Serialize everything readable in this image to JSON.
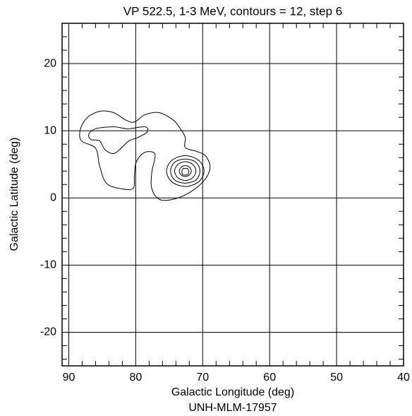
{
  "chart_data": {
    "type": "contour",
    "title": "VP 522.5, 1-3 MeV, contours = 12, step 6",
    "xlabel": "Galactic Longitude (deg)",
    "ylabel": "Galactic Latitude (deg)",
    "footnote": "UNH-MLM-17957",
    "xlim": [
      91,
      40
    ],
    "ylim": [
      -25,
      26
    ],
    "xticks": [
      90,
      80,
      70,
      60,
      50,
      40
    ],
    "yticks": [
      -20,
      -10,
      0,
      10,
      20
    ],
    "xminorticks": [
      88,
      86,
      84,
      82,
      78,
      76,
      74,
      72,
      68,
      66,
      64,
      62,
      58,
      56,
      54,
      52,
      48,
      46,
      44,
      42
    ],
    "yminorticks": [
      -24,
      -22,
      -18,
      -16,
      -14,
      -12,
      -8,
      -6,
      -4,
      -2,
      2,
      4,
      6,
      8,
      12,
      14,
      16,
      18,
      22,
      24
    ],
    "grid": true,
    "color": "#000000",
    "contours": [
      {
        "x": [
          88.3,
          88.1,
          86.0,
          85.4,
          84.4,
          82.3,
          80.4,
          80.2,
          80.0,
          79.2,
          78.1,
          77.1,
          77.6,
          77.6,
          76.5,
          74.4,
          71.8,
          69.7,
          68.9,
          69.5,
          70.8,
          72.6,
          72.6,
          73.4,
          74.4,
          76.5,
          78.6,
          80.2,
          81.5,
          83.3,
          85.4,
          87.3
        ],
        "y": [
          10.1,
          8.5,
          7.4,
          4.8,
          2.2,
          1.4,
          1.4,
          3.3,
          5.1,
          6.4,
          6.9,
          6.4,
          3.8,
          1.4,
          -0.2,
          -0.2,
          0.9,
          2.7,
          4.5,
          6.2,
          6.9,
          7.5,
          9.0,
          10.4,
          11.6,
          12.7,
          12.4,
          11.3,
          11.6,
          12.7,
          12.9,
          11.9
        ]
      },
      {
        "x": [
          87.0,
          86.0,
          83.3,
          81.2,
          78.6,
          78.3,
          79.7,
          81.0,
          82.1,
          83.3,
          84.6,
          85.4,
          86.7
        ],
        "y": [
          9.5,
          10.3,
          10.6,
          10.3,
          10.6,
          9.8,
          9.0,
          8.5,
          7.5,
          6.6,
          7.2,
          8.5,
          8.7
        ]
      },
      {
        "x": [
          69.8,
          70.6,
          72.6,
          74.6,
          75.4,
          74.6,
          72.6,
          70.6
        ],
        "y": [
          4.0,
          5.6,
          6.3,
          5.6,
          4.0,
          2.4,
          1.7,
          2.4
        ]
      },
      {
        "x": [
          70.4,
          71.0,
          72.6,
          74.2,
          74.8,
          74.2,
          72.6,
          71.0
        ],
        "y": [
          4.0,
          5.3,
          5.8,
          5.3,
          4.0,
          2.7,
          2.2,
          2.7
        ]
      },
      {
        "x": [
          71.0,
          71.5,
          72.6,
          73.7,
          74.2,
          73.7,
          72.6,
          71.5
        ],
        "y": [
          4.0,
          5.0,
          5.4,
          5.0,
          4.0,
          3.0,
          2.6,
          3.0
        ]
      },
      {
        "x": [
          71.7,
          72.0,
          72.6,
          73.2,
          73.5,
          73.2,
          72.6,
          72.0
        ],
        "y": [
          4.0,
          4.6,
          4.8,
          4.6,
          4.0,
          3.4,
          3.2,
          3.4
        ]
      },
      {
        "x": [
          72.1,
          72.2,
          72.6,
          73.0,
          73.1,
          73.0,
          72.6,
          72.2
        ],
        "y": [
          3.9,
          4.3,
          4.4,
          4.3,
          3.9,
          3.5,
          3.4,
          3.5
        ]
      }
    ]
  }
}
